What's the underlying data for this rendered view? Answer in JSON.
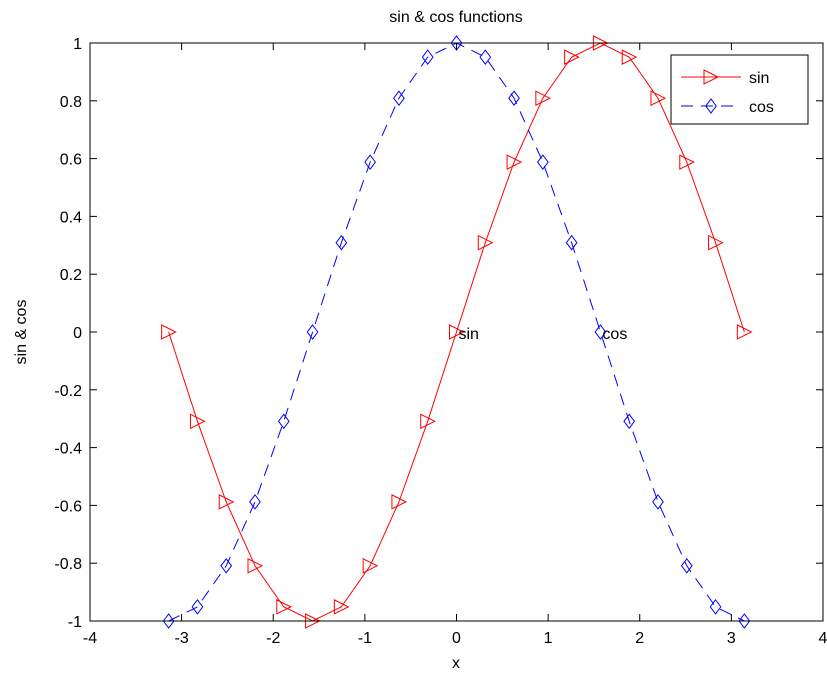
{
  "chart_data": {
    "type": "line",
    "title": "sin & cos functions",
    "xlabel": "x",
    "ylabel": "sin & cos",
    "xlim": [
      -4,
      4
    ],
    "ylim": [
      -1,
      1
    ],
    "xticks": [
      "-4",
      "-3",
      "-2",
      "-1",
      "0",
      "1",
      "2",
      "3",
      "4"
    ],
    "yticks": [
      "-1",
      "-0.8",
      "-0.6",
      "-0.4",
      "-0.2",
      "0",
      "0.2",
      "0.4",
      "0.6",
      "0.8",
      "1"
    ],
    "grid": false,
    "legend_position": "top-right",
    "x": [
      -3.1416,
      -2.8274,
      -2.5133,
      -2.1991,
      -1.885,
      -1.5708,
      -1.2566,
      -0.9425,
      -0.6283,
      -0.3142,
      0.0,
      0.3142,
      0.6283,
      0.9425,
      1.2566,
      1.5708,
      1.885,
      2.1991,
      2.5133,
      2.8274,
      3.1416
    ],
    "series": [
      {
        "name": "sin",
        "color": "#ff0000",
        "line_style": "solid",
        "marker": "triangle-right",
        "values": [
          0.0,
          -0.309,
          -0.5878,
          -0.809,
          -0.9511,
          -1.0,
          -0.9511,
          -0.809,
          -0.5878,
          -0.309,
          0.0,
          0.309,
          0.5878,
          0.809,
          0.9511,
          1.0,
          0.9511,
          0.809,
          0.5878,
          0.309,
          0.0
        ]
      },
      {
        "name": "cos",
        "color": "#0000ff",
        "line_style": "dashed",
        "marker": "diamond",
        "values": [
          -1.0,
          -0.9511,
          -0.809,
          -0.5878,
          -0.309,
          0.0,
          0.309,
          0.5878,
          0.809,
          0.9511,
          1.0,
          0.9511,
          0.809,
          0.5878,
          0.309,
          0.0,
          -0.309,
          -0.5878,
          -0.809,
          -0.9511,
          -1.0
        ]
      }
    ],
    "annotations": [
      {
        "text": "sin",
        "x": 0.0,
        "y": 0.0
      },
      {
        "text": "cos",
        "x": 1.5708,
        "y": 0.0
      }
    ]
  }
}
